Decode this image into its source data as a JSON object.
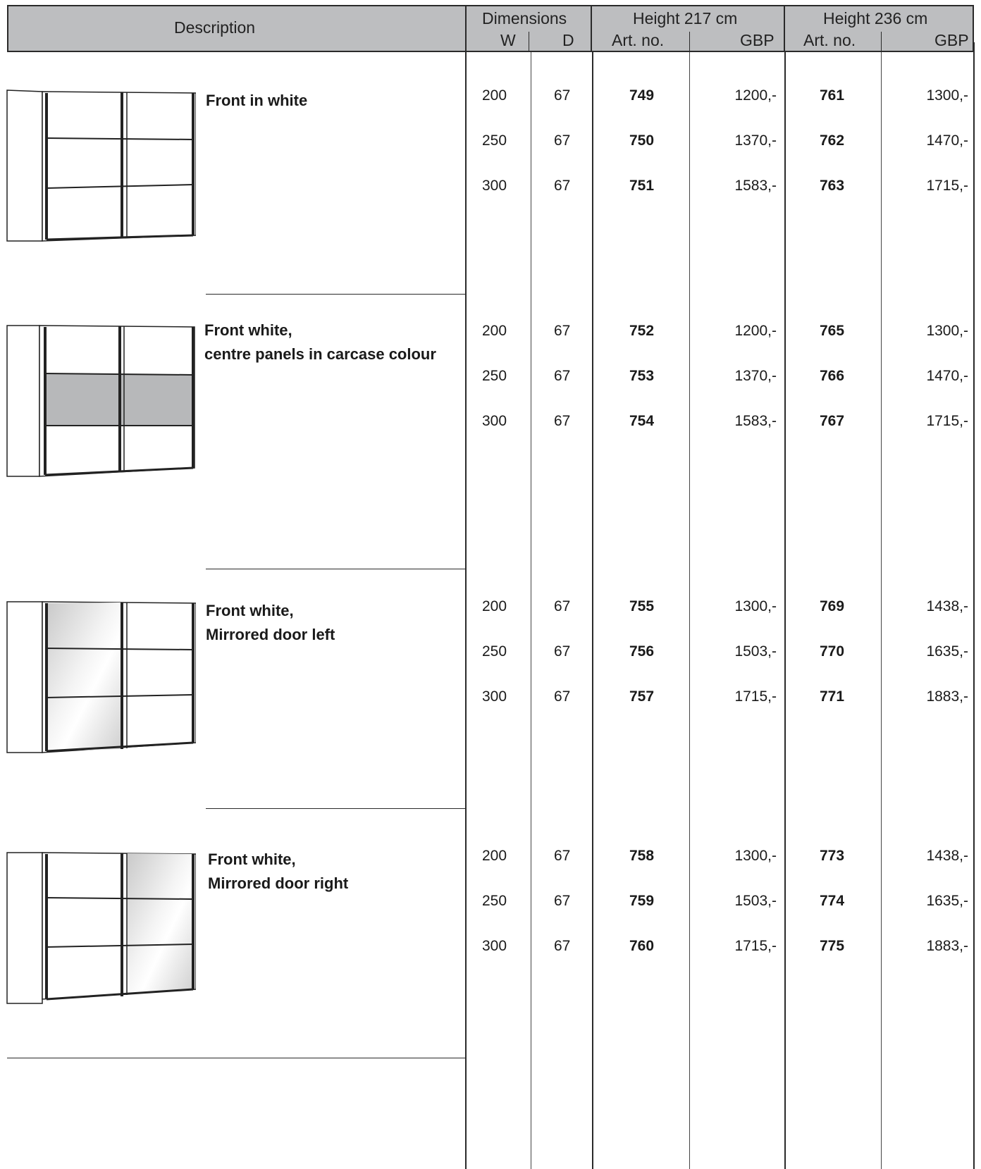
{
  "header": {
    "description": "Description",
    "dimensions": "Dimensions",
    "w": "W",
    "d": "D",
    "height_217": "Height 217 cm",
    "height_236": "Height 236 cm",
    "art_no_217": "Art. no.",
    "gbp_217": "GBP",
    "art_no_236": "Art. no.",
    "gbp_236": "GBP"
  },
  "products": [
    {
      "description_lines": [
        "Front in white"
      ],
      "front_style": "white",
      "rows": [
        {
          "w": "200",
          "d": "67",
          "art_217": "749",
          "gbp_217": "1200,-",
          "art_236": "761",
          "gbp_236": "1300,-"
        },
        {
          "w": "250",
          "d": "67",
          "art_217": "750",
          "gbp_217": "1370,-",
          "art_236": "762",
          "gbp_236": "1470,-"
        },
        {
          "w": "300",
          "d": "67",
          "art_217": "751",
          "gbp_217": "1583,-",
          "art_236": "763",
          "gbp_236": "1715,-"
        }
      ]
    },
    {
      "description_lines": [
        "Front white,",
        "centre panels in carcase colour"
      ],
      "front_style": "centre-panels-carcase",
      "rows": [
        {
          "w": "200",
          "d": "67",
          "art_217": "752",
          "gbp_217": "1200,-",
          "art_236": "765",
          "gbp_236": "1300,-"
        },
        {
          "w": "250",
          "d": "67",
          "art_217": "753",
          "gbp_217": "1370,-",
          "art_236": "766",
          "gbp_236": "1470,-"
        },
        {
          "w": "300",
          "d": "67",
          "art_217": "754",
          "gbp_217": "1583,-",
          "art_236": "767",
          "gbp_236": "1715,-"
        }
      ]
    },
    {
      "description_lines": [
        "Front white,",
        "Mirrored door left"
      ],
      "front_style": "mirror-left",
      "rows": [
        {
          "w": "200",
          "d": "67",
          "art_217": "755",
          "gbp_217": "1300,-",
          "art_236": "769",
          "gbp_236": "1438,-"
        },
        {
          "w": "250",
          "d": "67",
          "art_217": "756",
          "gbp_217": "1503,-",
          "art_236": "770",
          "gbp_236": "1635,-"
        },
        {
          "w": "300",
          "d": "67",
          "art_217": "757",
          "gbp_217": "1715,-",
          "art_236": "771",
          "gbp_236": "1883,-"
        }
      ]
    },
    {
      "description_lines": [
        "Front white,",
        "Mirrored door right"
      ],
      "front_style": "mirror-right",
      "rows": [
        {
          "w": "200",
          "d": "67",
          "art_217": "758",
          "gbp_217": "1300,-",
          "art_236": "773",
          "gbp_236": "1438,-"
        },
        {
          "w": "250",
          "d": "67",
          "art_217": "759",
          "gbp_217": "1503,-",
          "art_236": "774",
          "gbp_236": "1635,-"
        },
        {
          "w": "300",
          "d": "67",
          "art_217": "760",
          "gbp_217": "1715,-",
          "art_236": "775",
          "gbp_236": "1883,-"
        }
      ]
    }
  ],
  "colors": {
    "header_bg": "#bdbec0",
    "line": "#2a2a2a",
    "carcase_panel": "#b7b8ba",
    "mirror_light": "#f4f4f4",
    "mirror_dark": "#c9c9c9"
  }
}
